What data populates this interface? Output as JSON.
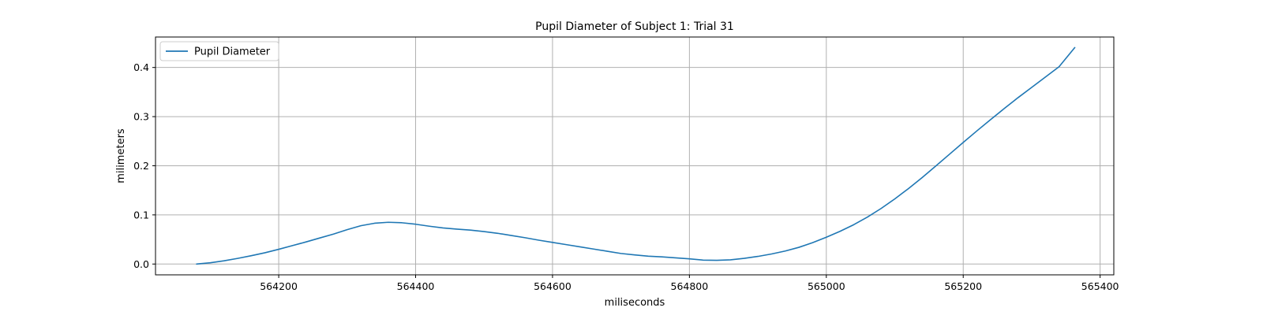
{
  "chart_data": {
    "type": "line",
    "title": "Pupil Diameter of Subject 1: Trial 31",
    "xlabel": "miliseconds",
    "ylabel": "milimeters",
    "xlim": [
      564020,
      565420
    ],
    "ylim": [
      -0.022,
      0.462
    ],
    "x_ticks": [
      564200,
      564400,
      564600,
      564800,
      565000,
      565200,
      565400
    ],
    "y_ticks": [
      0.0,
      0.1,
      0.2,
      0.3,
      0.4
    ],
    "y_tick_labels": [
      "0.0",
      "0.1",
      "0.2",
      "0.3",
      "0.4"
    ],
    "grid": true,
    "legend_position": "top-left",
    "series": [
      {
        "name": "Pupil Diameter",
        "color": "#1f77b4",
        "x": [
          564080,
          564100,
          564120,
          564140,
          564160,
          564180,
          564200,
          564220,
          564240,
          564260,
          564280,
          564300,
          564320,
          564340,
          564360,
          564380,
          564400,
          564420,
          564440,
          564460,
          564480,
          564500,
          564520,
          564540,
          564560,
          564580,
          564600,
          564620,
          564640,
          564660,
          564680,
          564700,
          564720,
          564740,
          564760,
          564780,
          564800,
          564820,
          564840,
          564860,
          564880,
          564900,
          564920,
          564940,
          564960,
          564980,
          565000,
          565020,
          565040,
          565060,
          565080,
          565100,
          565120,
          565140,
          565160,
          565180,
          565200,
          565220,
          565240,
          565260,
          565280,
          565300,
          565320,
          565340,
          565363
        ],
        "y": [
          0.0,
          0.0025,
          0.0065,
          0.0115,
          0.017,
          0.023,
          0.03,
          0.0375,
          0.045,
          0.053,
          0.061,
          0.07,
          0.078,
          0.083,
          0.085,
          0.084,
          0.081,
          0.077,
          0.0735,
          0.071,
          0.069,
          0.066,
          0.0625,
          0.058,
          0.0535,
          0.0485,
          0.044,
          0.0395,
          0.035,
          0.0305,
          0.026,
          0.0215,
          0.0185,
          0.016,
          0.0145,
          0.0125,
          0.0105,
          0.008,
          0.0075,
          0.0085,
          0.0115,
          0.0155,
          0.0205,
          0.0265,
          0.034,
          0.0435,
          0.0545,
          0.0665,
          0.08,
          0.0955,
          0.113,
          0.1325,
          0.1535,
          0.176,
          0.1995,
          0.2235,
          0.2475,
          0.271,
          0.294,
          0.3165,
          0.3385,
          0.3595,
          0.3805,
          0.4015,
          0.4405
        ]
      }
    ]
  }
}
